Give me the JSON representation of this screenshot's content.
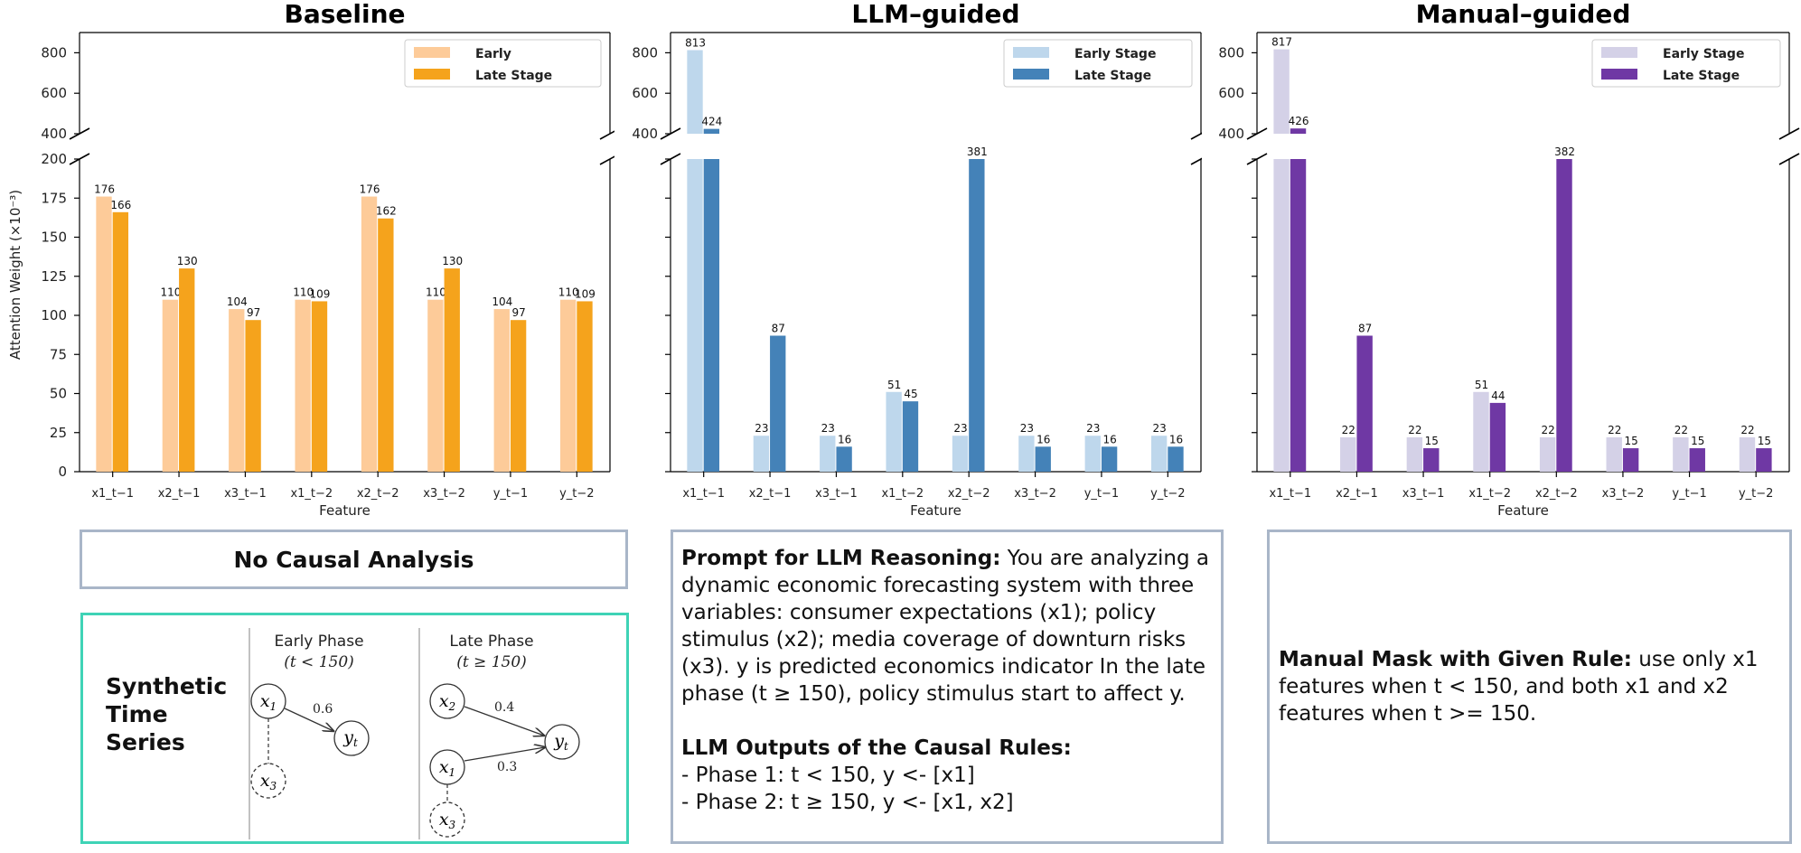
{
  "chart_data": [
    {
      "type": "bar",
      "title": "Baseline",
      "xlabel": "Feature",
      "ylabel": "Attention Weight (×10⁻³)",
      "categories": [
        "x1_t−1",
        "x2_t−1",
        "x3_t−1",
        "x1_t−2",
        "x2_t−2",
        "x3_t−2",
        "y_t−1",
        "y_t−2"
      ],
      "broken_axis": {
        "lower_range": [
          0,
          200
        ],
        "upper_range": [
          400,
          900
        ]
      },
      "lower_ticks": [
        "0",
        "25",
        "50",
        "75",
        "100",
        "125",
        "150",
        "175",
        "200"
      ],
      "upper_ticks": [
        "400",
        "600",
        "800"
      ],
      "show_y_labels": true,
      "legend_position": "top-right",
      "series": [
        {
          "name": "Early",
          "color": "#fdcb99",
          "values": [
            176,
            110,
            104,
            110,
            176,
            110,
            104,
            110
          ],
          "labels": [
            "176",
            "110",
            "104",
            "110",
            "176",
            "110",
            "104",
            "110"
          ]
        },
        {
          "name": "Late Stage",
          "color": "#f5a31c",
          "values": [
            166,
            130,
            97,
            109,
            162,
            130,
            97,
            109
          ],
          "labels": [
            "166",
            "130",
            "97",
            "109",
            "162",
            "130",
            "97",
            "109"
          ]
        }
      ]
    },
    {
      "type": "bar",
      "title": "LLM–guided",
      "xlabel": "Feature",
      "ylabel": "",
      "categories": [
        "x1_t−1",
        "x2_t−1",
        "x3_t−1",
        "x1_t−2",
        "x2_t−2",
        "x3_t−2",
        "y_t−1",
        "y_t−2"
      ],
      "broken_axis": {
        "lower_range": [
          0,
          200
        ],
        "upper_range": [
          400,
          900
        ]
      },
      "lower_ticks": [
        "0",
        "25",
        "50",
        "75",
        "100",
        "125",
        "150",
        "175",
        "200"
      ],
      "upper_ticks": [
        "400",
        "600",
        "800"
      ],
      "show_y_labels": false,
      "legend_position": "top-right",
      "series": [
        {
          "name": "Early Stage",
          "color": "#bed7ec",
          "values": [
            813,
            23,
            23,
            51,
            23,
            23,
            23,
            23
          ],
          "labels": [
            "813",
            "23",
            "23",
            "51",
            "23",
            "23",
            "23",
            "23"
          ]
        },
        {
          "name": "Late Stage",
          "color": "#4482b8",
          "values": [
            424,
            87,
            16,
            45,
            381,
            16,
            16,
            16
          ],
          "labels": [
            "424",
            "87",
            "16",
            "45",
            "381",
            "16",
            "16",
            "16"
          ]
        }
      ]
    },
    {
      "type": "bar",
      "title": "Manual–guided",
      "xlabel": "Feature",
      "ylabel": "",
      "categories": [
        "x1_t−1",
        "x2_t−1",
        "x3_t−1",
        "x1_t−2",
        "x2_t−2",
        "x3_t−2",
        "y_t−1",
        "y_t−2"
      ],
      "broken_axis": {
        "lower_range": [
          0,
          200
        ],
        "upper_range": [
          400,
          900
        ]
      },
      "lower_ticks": [
        "0",
        "25",
        "50",
        "75",
        "100",
        "125",
        "150",
        "175",
        "200"
      ],
      "upper_ticks": [
        "400",
        "600",
        "800"
      ],
      "show_y_labels": false,
      "legend_position": "top-right",
      "series": [
        {
          "name": "Early Stage",
          "color": "#d4d1e7",
          "values": [
            817,
            22,
            22,
            51,
            22,
            22,
            22,
            22
          ],
          "labels": [
            "817",
            "22",
            "22",
            "51",
            "22",
            "22",
            "22",
            "22"
          ]
        },
        {
          "name": "Late Stage",
          "color": "#6f38a4",
          "values": [
            426,
            87,
            15,
            44,
            382,
            15,
            15,
            15
          ],
          "labels": [
            "426",
            "87",
            "15",
            "44",
            "382",
            "15",
            "15",
            "15"
          ]
        }
      ]
    }
  ],
  "panels": {
    "baseline": {
      "label": "No Causal Analysis"
    },
    "synthetic": {
      "label": "Synthetic Time Series",
      "label_lines": [
        "Synthetic",
        "Time",
        "Series"
      ],
      "early_title": "Early Phase",
      "early_condition": "(t < 150)",
      "late_title": "Late Phase",
      "late_condition": "(t ≥ 150)",
      "early_edge_weight": "0.6",
      "late_edge_weight_x2": "0.4",
      "late_edge_weight_x1": "0.3",
      "border_color": "#3fd3b6"
    },
    "llm": {
      "prompt_heading": "Prompt for LLM Reasoning:",
      "prompt_text": " You are analyzing a dynamic economic forecasting system with three variables: consumer expectations (x1); policy stimulus (x2); media coverage of downturn risks (x3). y is predicted economics indicator In the late phase (t ≥ 150), policy stimulus start to affect y.",
      "outputs_heading": "LLM Outputs of the Causal Rules:",
      "rule_1": "- Phase 1: t < 150, y <- [x1]",
      "rule_2": "- Phase 2: t ≥ 150, y <- [x1, x2]"
    },
    "manual": {
      "heading": "Manual Mask with Given Rule:",
      "text": " use only x1 features when t < 150, and both x1 and x2 features when t >= 150."
    }
  }
}
